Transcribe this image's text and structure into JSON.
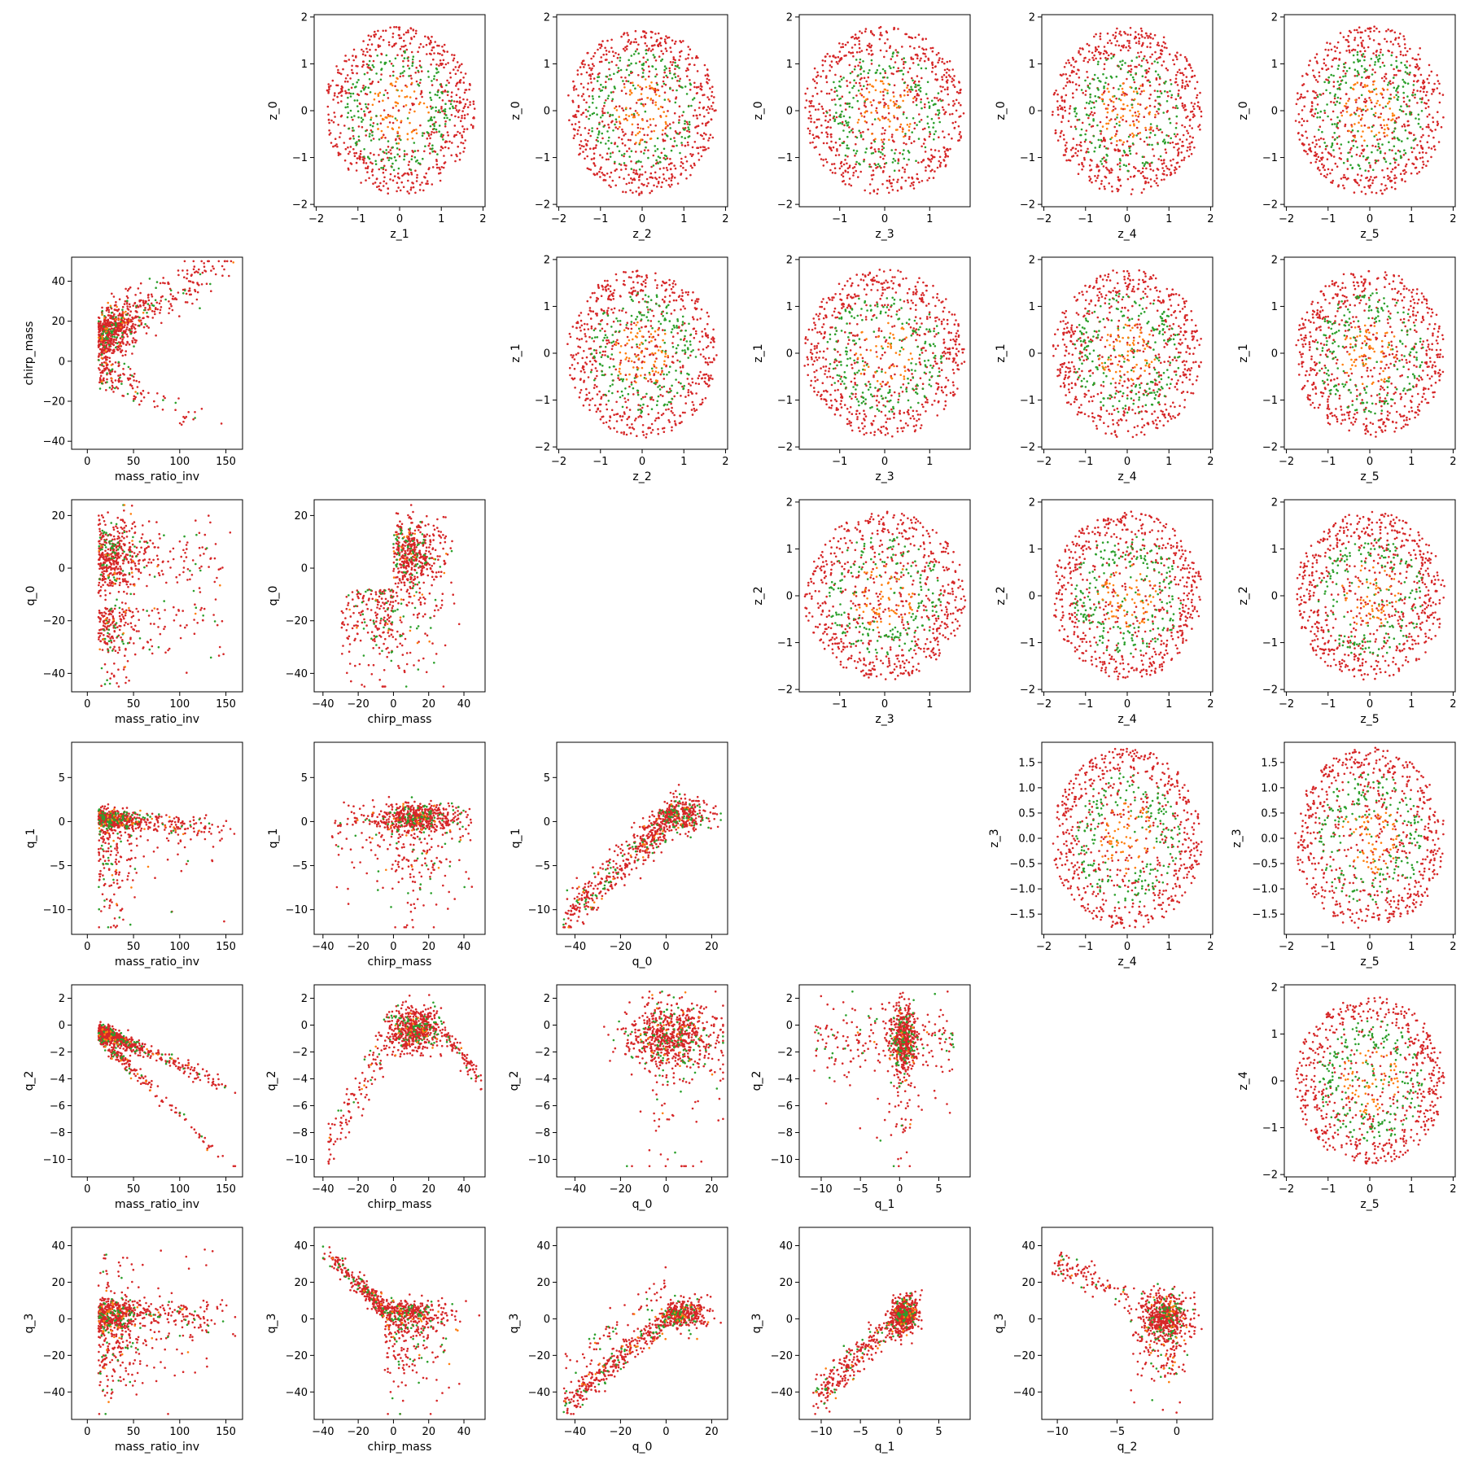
{
  "colors": {
    "points_primary": "#d62728",
    "points_secondary": "#2ca02c",
    "points_tertiary": "#ff7f0e"
  },
  "axes": {
    "mass_ratio_inv": {
      "label": "mass_ratio_inv",
      "lim": [
        -17,
        168
      ],
      "ticks": [
        0,
        50,
        100,
        150
      ],
      "tick_labels": [
        "0",
        "50",
        "100",
        "150"
      ]
    },
    "chirp_mass": {
      "label": "chirp_mass",
      "lim": [
        -45,
        52
      ],
      "ticks": [
        -40,
        -20,
        0,
        20,
        40
      ],
      "tick_labels": [
        "−40",
        "−20",
        "0",
        "20",
        "40"
      ],
      "ylim": [
        -44,
        52
      ]
    },
    "q_0": {
      "label": "q_0",
      "lim": [
        -48,
        27
      ],
      "ticks": [
        -40,
        -20,
        0,
        20
      ],
      "tick_labels": [
        "−40",
        "−20",
        "0",
        "20"
      ],
      "ylim": [
        -47,
        26
      ]
    },
    "q_1": {
      "label": "q_1",
      "lim": [
        -12.8,
        9
      ],
      "ticks": [
        -10,
        -5,
        0,
        5
      ],
      "tick_labels": [
        "−10",
        "−5",
        "0",
        "5"
      ]
    },
    "q_2": {
      "label": "q_2",
      "lim": [
        -11.3,
        3
      ],
      "ticks": [
        -10,
        -8,
        -6,
        -4,
        -2,
        0,
        2
      ],
      "tick_labels": [
        "−10",
        "−8",
        "−6",
        "−4",
        "−2",
        "0",
        "2"
      ],
      "xticks": [
        -10,
        -5,
        0
      ],
      "xtick_labels": [
        "−10",
        "−5",
        "0"
      ]
    },
    "q_3": {
      "label": "q_3",
      "lim": [
        -55,
        50
      ],
      "ticks": [
        -40,
        -20,
        0,
        20,
        40
      ],
      "tick_labels": [
        "−40",
        "−20",
        "0",
        "20",
        "40"
      ]
    },
    "z": {
      "lim": [
        -2.05,
        2.05
      ],
      "ticks": [
        -2,
        -1,
        0,
        1,
        2
      ],
      "tick_labels": [
        "−2",
        "−1",
        "0",
        "1",
        "2"
      ]
    },
    "z_narrow": {
      "lim": [
        -1.9,
        1.9
      ],
      "ticks": [
        -1,
        0,
        1
      ],
      "tick_labels": [
        "−1",
        "0",
        "1"
      ]
    },
    "z_3": {
      "ylim": [
        -1.9,
        1.9
      ],
      "ticks": [
        -1.5,
        -1.0,
        -0.5,
        0.0,
        0.5,
        1.0,
        1.5
      ],
      "tick_labels": [
        "−1.5",
        "−1.0",
        "−0.5",
        "0.0",
        "0.5",
        "1.0",
        "1.5"
      ]
    }
  },
  "labels": {
    "mass_ratio_inv": "mass_ratio_inv",
    "chirp_mass": "chirp_mass",
    "q_0": "q_0",
    "q_1": "q_1",
    "q_2": "q_2",
    "q_3": "q_3",
    "z_0": "z_0",
    "z_1": "z_1",
    "z_2": "z_2",
    "z_3": "z_3",
    "z_4": "z_4",
    "z_5": "z_5"
  },
  "chart_data": {
    "type": "scatter",
    "description_type": "pair plot (corner-style grid of scatter panels)",
    "grid_rows": 6,
    "grid_cols": 6,
    "lower_triangle_variables": [
      "mass_ratio_inv",
      "chirp_mass",
      "q_0",
      "q_1",
      "q_2",
      "q_3"
    ],
    "upper_triangle_variables": [
      "z_0",
      "z_1",
      "z_2",
      "z_3",
      "z_4",
      "z_5"
    ],
    "marker_colors": [
      "#d62728",
      "#2ca02c",
      "#ff7f0e"
    ],
    "panels": [
      {
        "row": 0,
        "col": 1,
        "x": "z_1",
        "y": "z_0",
        "shape": "blob"
      },
      {
        "row": 0,
        "col": 2,
        "x": "z_2",
        "y": "z_0",
        "shape": "blob"
      },
      {
        "row": 0,
        "col": 3,
        "x": "z_3",
        "y": "z_0",
        "shape": "blob"
      },
      {
        "row": 0,
        "col": 4,
        "x": "z_4",
        "y": "z_0",
        "shape": "blob"
      },
      {
        "row": 0,
        "col": 5,
        "x": "z_5",
        "y": "z_0",
        "shape": "blob"
      },
      {
        "row": 1,
        "col": 0,
        "x": "mass_ratio_inv",
        "y": "chirp_mass",
        "shape": "mr_cm"
      },
      {
        "row": 1,
        "col": 2,
        "x": "z_2",
        "y": "z_1",
        "shape": "blob"
      },
      {
        "row": 1,
        "col": 3,
        "x": "z_3",
        "y": "z_1",
        "shape": "blob"
      },
      {
        "row": 1,
        "col": 4,
        "x": "z_4",
        "y": "z_1",
        "shape": "blob"
      },
      {
        "row": 1,
        "col": 5,
        "x": "z_5",
        "y": "z_1",
        "shape": "blob"
      },
      {
        "row": 2,
        "col": 0,
        "x": "mass_ratio_inv",
        "y": "q_0",
        "shape": "mr_q0"
      },
      {
        "row": 2,
        "col": 1,
        "x": "chirp_mass",
        "y": "q_0",
        "shape": "cm_q0"
      },
      {
        "row": 2,
        "col": 3,
        "x": "z_3",
        "y": "z_2",
        "shape": "blob"
      },
      {
        "row": 2,
        "col": 4,
        "x": "z_4",
        "y": "z_2",
        "shape": "blob"
      },
      {
        "row": 2,
        "col": 5,
        "x": "z_5",
        "y": "z_2",
        "shape": "blob"
      },
      {
        "row": 3,
        "col": 0,
        "x": "mass_ratio_inv",
        "y": "q_1",
        "shape": "mr_q1"
      },
      {
        "row": 3,
        "col": 1,
        "x": "chirp_mass",
        "y": "q_1",
        "shape": "cm_q1"
      },
      {
        "row": 3,
        "col": 2,
        "x": "q_0",
        "y": "q_1",
        "shape": "q0_q1"
      },
      {
        "row": 3,
        "col": 4,
        "x": "z_4",
        "y": "z_3",
        "shape": "blob"
      },
      {
        "row": 3,
        "col": 5,
        "x": "z_5",
        "y": "z_3",
        "shape": "blob"
      },
      {
        "row": 4,
        "col": 0,
        "x": "mass_ratio_inv",
        "y": "q_2",
        "shape": "mr_q2"
      },
      {
        "row": 4,
        "col": 1,
        "x": "chirp_mass",
        "y": "q_2",
        "shape": "cm_q2"
      },
      {
        "row": 4,
        "col": 2,
        "x": "q_0",
        "y": "q_2",
        "shape": "q0_q2"
      },
      {
        "row": 4,
        "col": 3,
        "x": "q_1",
        "y": "q_2",
        "shape": "q1_q2"
      },
      {
        "row": 4,
        "col": 5,
        "x": "z_5",
        "y": "z_4",
        "shape": "blob"
      },
      {
        "row": 5,
        "col": 0,
        "x": "mass_ratio_inv",
        "y": "q_3",
        "shape": "mr_q3"
      },
      {
        "row": 5,
        "col": 1,
        "x": "chirp_mass",
        "y": "q_3",
        "shape": "cm_q3"
      },
      {
        "row": 5,
        "col": 2,
        "x": "q_0",
        "y": "q_3",
        "shape": "q0_q3"
      },
      {
        "row": 5,
        "col": 3,
        "x": "q_1",
        "y": "q_3",
        "shape": "q1_q3"
      },
      {
        "row": 5,
        "col": 4,
        "x": "q_2",
        "y": "q_3",
        "shape": "q2_q3"
      }
    ]
  }
}
